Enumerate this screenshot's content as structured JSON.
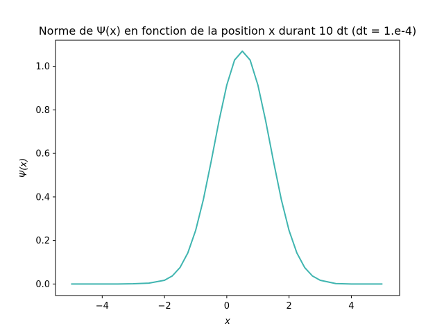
{
  "chart_data": {
    "type": "line",
    "title": "Norme de Ψ(x) en fonction de la position x durant 10 dt (dt = 1.e-4)",
    "xlabel": "x",
    "ylabel": "Ψ(x)",
    "xlim": [
      -5.5,
      5.55
    ],
    "ylim": [
      -0.053,
      1.12
    ],
    "xticks": [
      -4,
      -2,
      0,
      2,
      4
    ],
    "xtick_labels": [
      "−4",
      "−2",
      "0",
      "2",
      "4"
    ],
    "yticks": [
      0.0,
      0.2,
      0.4,
      0.6,
      0.8,
      1.0
    ],
    "ytick_labels": [
      "0.0",
      "0.2",
      "0.4",
      "0.6",
      "0.8",
      "1.0"
    ],
    "grid": false,
    "series": [
      {
        "color": "#40b5b0",
        "x": [
          -5.0,
          -4.5,
          -4.0,
          -3.5,
          -3.0,
          -2.5,
          -2.0,
          -1.75,
          -1.5,
          -1.25,
          -1.0,
          -0.75,
          -0.5,
          -0.25,
          0.0,
          0.25,
          0.5,
          0.75,
          1.0,
          1.25,
          1.5,
          1.75,
          2.0,
          2.25,
          2.5,
          2.75,
          3.0,
          3.5,
          4.0,
          4.5,
          5.0
        ],
        "y": [
          0.0,
          0.0,
          0.0,
          0.0,
          0.001,
          0.004,
          0.017,
          0.037,
          0.076,
          0.143,
          0.246,
          0.389,
          0.564,
          0.749,
          0.914,
          1.029,
          1.07,
          1.029,
          0.914,
          0.749,
          0.564,
          0.389,
          0.246,
          0.143,
          0.076,
          0.037,
          0.017,
          0.002,
          0.0,
          0.0,
          0.0
        ]
      }
    ]
  }
}
